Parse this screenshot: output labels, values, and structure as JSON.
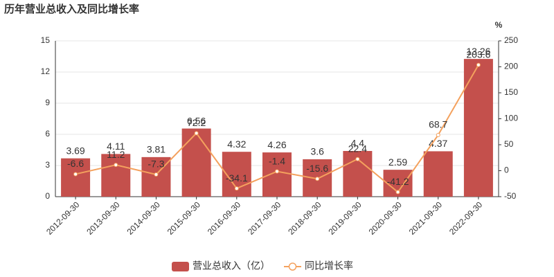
{
  "chart_data": {
    "type": "bar",
    "title": "历年营业总收入及同比增长率",
    "y2_unit": "%",
    "categories": [
      "2012-09-30",
      "2013-09-30",
      "2014-09-30",
      "2015-09-30",
      "2016-09-30",
      "2017-09-30",
      "2018-09-30",
      "2019-09-30",
      "2020-09-30",
      "2021-09-30",
      "2022-09-30"
    ],
    "series": [
      {
        "name": "营业总收入（亿）",
        "type": "bar",
        "color": "#c4504c",
        "values": [
          3.69,
          4.11,
          3.81,
          6.56,
          4.32,
          4.26,
          3.6,
          4.4,
          2.59,
          4.37,
          13.26
        ]
      },
      {
        "name": "同比增长率",
        "type": "line",
        "axis": "y2",
        "color": "#f4a15d",
        "values": [
          -6.6,
          11.2,
          -7.3,
          72.2,
          -34.1,
          -1.4,
          -15.6,
          22.4,
          -41.2,
          68.7,
          203.6
        ]
      }
    ],
    "ylim": [
      0,
      15
    ],
    "yticks": [
      0,
      3,
      6,
      9,
      12,
      15
    ],
    "y2lim": [
      -50,
      250
    ],
    "y2ticks": [
      -50,
      0,
      50,
      100,
      150,
      200,
      250
    ],
    "grid": true
  }
}
